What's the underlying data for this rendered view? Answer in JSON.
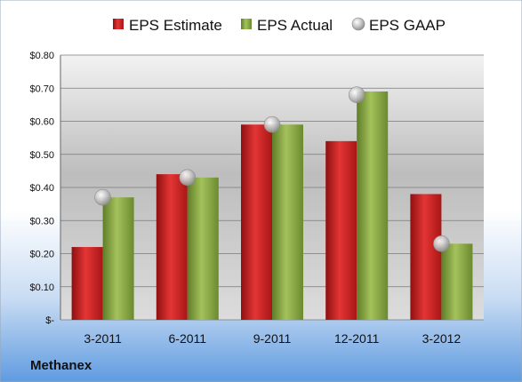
{
  "company": "Methanex",
  "colors": {
    "estimate": "#cc1f1f",
    "actual": "#8cad44",
    "gaap": "#c8c8c8"
  },
  "chart_data": {
    "type": "bar",
    "categories": [
      "3-2011",
      "6-2011",
      "9-2011",
      "12-2011",
      "3-2012"
    ],
    "series": [
      {
        "name": "EPS Estimate",
        "kind": "bar",
        "values": [
          0.22,
          0.44,
          0.59,
          0.54,
          0.38
        ]
      },
      {
        "name": "EPS Actual",
        "kind": "bar",
        "values": [
          0.37,
          0.43,
          0.59,
          0.69,
          0.23
        ]
      },
      {
        "name": "EPS GAAP",
        "kind": "marker",
        "values": [
          0.37,
          0.43,
          0.59,
          0.68,
          0.23
        ]
      }
    ],
    "ylim": [
      0,
      0.8
    ],
    "yticks": [
      0,
      0.1,
      0.2,
      0.3,
      0.4,
      0.5,
      0.6,
      0.7,
      0.8
    ],
    "ytick_labels": [
      "$-",
      "$0.10",
      "$0.20",
      "$0.30",
      "$0.40",
      "$0.50",
      "$0.60",
      "$0.70",
      "$0.80"
    ],
    "grid": true,
    "legend": "top"
  }
}
